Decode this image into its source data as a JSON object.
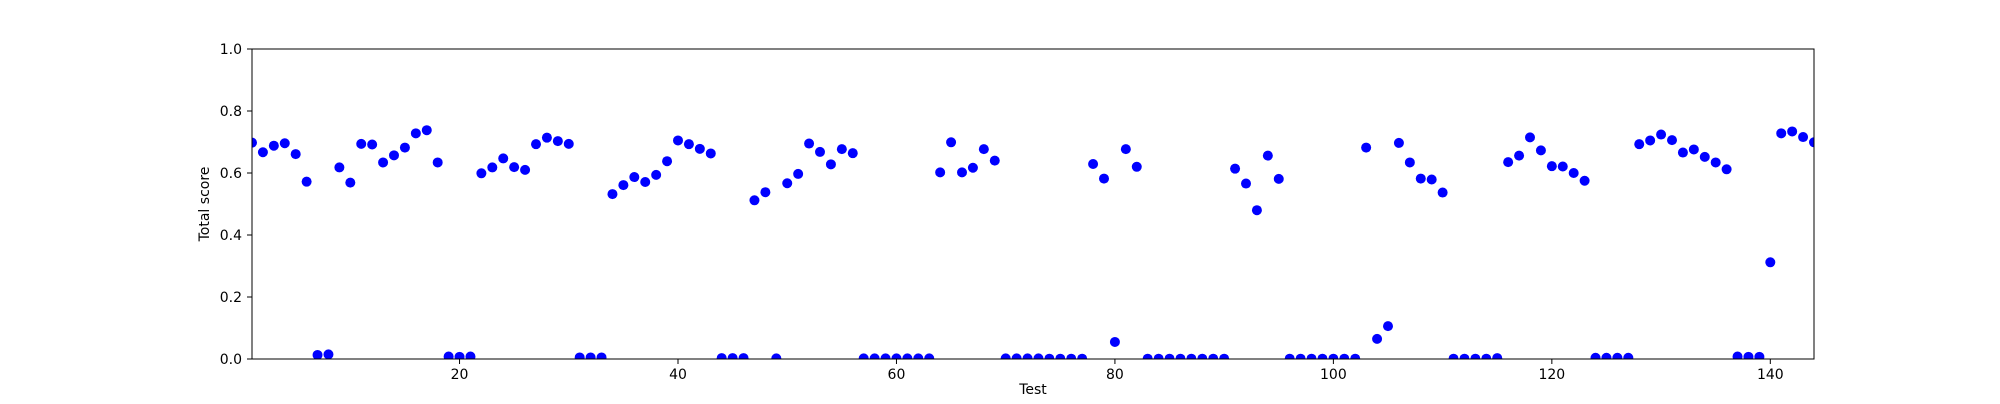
{
  "chart_data": {
    "type": "scatter",
    "xlabel": "Test",
    "ylabel": "Total score",
    "xlim": [
      1,
      144
    ],
    "ylim": [
      0.0,
      1.0
    ],
    "x_ticks": [
      20,
      40,
      60,
      80,
      100,
      120,
      140
    ],
    "x_tick_labels": [
      "20",
      "40",
      "60",
      "80",
      "100",
      "120",
      "140"
    ],
    "y_ticks": [
      0.0,
      0.2,
      0.4,
      0.6,
      0.8,
      1.0
    ],
    "y_tick_labels": [
      "0.0",
      "0.2",
      "0.4",
      "0.6",
      "0.8",
      "1.0"
    ],
    "grid": false,
    "marker_color": "#0000ff",
    "x": [
      1,
      2,
      3,
      4,
      5,
      6,
      7,
      8,
      9,
      10,
      11,
      12,
      13,
      14,
      15,
      16,
      17,
      18,
      19,
      20,
      21,
      22,
      23,
      24,
      25,
      26,
      27,
      28,
      29,
      30,
      31,
      32,
      33,
      34,
      35,
      36,
      37,
      38,
      39,
      40,
      41,
      42,
      43,
      44,
      45,
      46,
      47,
      48,
      49,
      50,
      51,
      52,
      53,
      54,
      55,
      56,
      57,
      58,
      59,
      60,
      61,
      62,
      63,
      64,
      65,
      66,
      67,
      68,
      69,
      70,
      71,
      72,
      73,
      74,
      75,
      76,
      77,
      78,
      79,
      80,
      81,
      82,
      83,
      84,
      85,
      86,
      87,
      88,
      89,
      90,
      91,
      92,
      93,
      94,
      95,
      96,
      97,
      98,
      99,
      100,
      101,
      102,
      103,
      104,
      105,
      106,
      107,
      108,
      109,
      110,
      111,
      112,
      113,
      114,
      115,
      116,
      117,
      118,
      119,
      120,
      121,
      122,
      123,
      124,
      125,
      126,
      127,
      128,
      129,
      130,
      131,
      132,
      133,
      134,
      135,
      136,
      137,
      138,
      139,
      140,
      141,
      142,
      143,
      144
    ],
    "y": [
      0.698,
      0.667,
      0.688,
      0.696,
      0.661,
      0.572,
      0.013,
      0.015,
      0.618,
      0.569,
      0.694,
      0.692,
      0.634,
      0.657,
      0.682,
      0.728,
      0.738,
      0.634,
      0.008,
      0.007,
      0.008,
      0.599,
      0.618,
      0.647,
      0.619,
      0.61,
      0.693,
      0.714,
      0.703,
      0.694,
      0.005,
      0.005,
      0.005,
      0.532,
      0.561,
      0.587,
      0.571,
      0.594,
      0.638,
      0.705,
      0.693,
      0.678,
      0.663,
      0.003,
      0.003,
      0.003,
      0.512,
      0.538,
      0.002,
      0.567,
      0.597,
      0.695,
      0.668,
      0.628,
      0.677,
      0.664,
      0.002,
      0.002,
      0.002,
      0.002,
      0.002,
      0.002,
      0.002,
      0.602,
      0.699,
      0.602,
      0.617,
      0.677,
      0.64,
      0.002,
      0.002,
      0.002,
      0.002,
      0.001,
      0.001,
      0.001,
      0.001,
      0.629,
      0.582,
      0.055,
      0.677,
      0.62,
      0.001,
      0.001,
      0.001,
      0.001,
      0.001,
      0.001,
      0.001,
      0.001,
      0.614,
      0.566,
      0.48,
      0.656,
      0.581,
      0.001,
      0.001,
      0.001,
      0.001,
      0.001,
      0.001,
      0.001,
      0.682,
      0.065,
      0.106,
      0.697,
      0.634,
      0.582,
      0.579,
      0.537,
      0.001,
      0.001,
      0.001,
      0.001,
      0.003,
      0.635,
      0.656,
      0.715,
      0.673,
      0.622,
      0.621,
      0.6,
      0.575,
      0.004,
      0.004,
      0.004,
      0.004,
      0.693,
      0.705,
      0.724,
      0.706,
      0.666,
      0.676,
      0.652,
      0.634,
      0.612,
      0.008,
      0.007,
      0.007,
      0.312,
      0.728,
      0.734,
      0.716,
      0.699
    ]
  }
}
